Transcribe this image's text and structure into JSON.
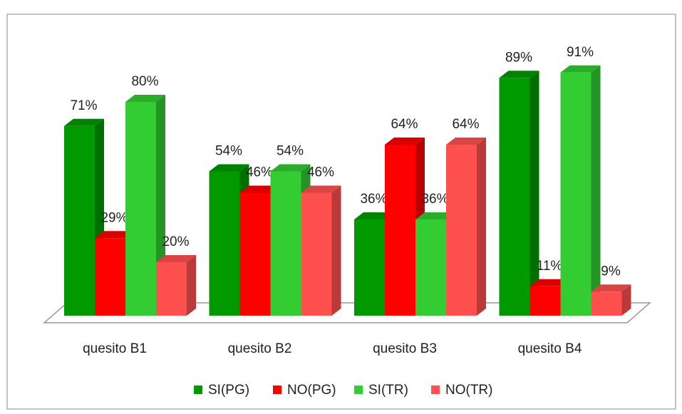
{
  "chart_data": {
    "type": "bar3d",
    "categories": [
      "quesito B1",
      "quesito B2",
      "quesito B3",
      "quesito B4"
    ],
    "series": [
      {
        "name": "SI(PG)",
        "color": "#009a00",
        "values": [
          71,
          54,
          36,
          89
        ],
        "value_labels": [
          "71%",
          "54%",
          "36%",
          "89%"
        ]
      },
      {
        "name": "NO(PG)",
        "color": "#ff0000",
        "values": [
          29,
          46,
          64,
          11
        ],
        "value_labels": [
          "29%",
          "46%",
          "64%",
          "11%"
        ]
      },
      {
        "name": "SI(TR)",
        "color": "#33cc33",
        "values": [
          80,
          54,
          36,
          91
        ],
        "value_labels": [
          "80%",
          "54%",
          "36%",
          "91%"
        ]
      },
      {
        "name": "NO(TR)",
        "color": "#ff5050",
        "values": [
          20,
          46,
          64,
          9
        ],
        "value_labels": [
          "20%",
          "46%",
          "64%",
          "9%"
        ]
      }
    ],
    "legend": "bottom"
  }
}
